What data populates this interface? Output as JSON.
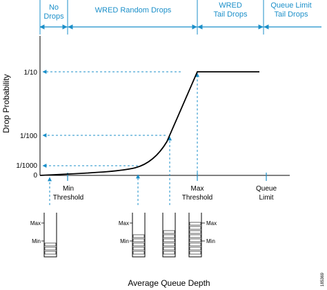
{
  "regions": {
    "no_drops": [
      "No",
      "Drops"
    ],
    "wred_random": "WRED Random Drops",
    "wred_tail": [
      "WRED",
      "Tail Drops"
    ],
    "queue_limit": [
      "Queue Limit",
      "Tail Drops"
    ]
  },
  "y_axis": {
    "label": "Drop Probability",
    "ticks": [
      "1/10",
      "1/100",
      "1/1000",
      "0"
    ]
  },
  "x_axis": {
    "label": "Average Queue Depth",
    "min_threshold": [
      "Min",
      "Threshold"
    ],
    "max_threshold": [
      "Max",
      "Threshold"
    ],
    "queue_limit": [
      "Queue",
      "Limit"
    ]
  },
  "queue_markers": {
    "max": "Max",
    "min": "Min"
  },
  "figure_id": "185369",
  "colors": {
    "accent": "#1b8fc9",
    "curve": "#000000"
  }
}
